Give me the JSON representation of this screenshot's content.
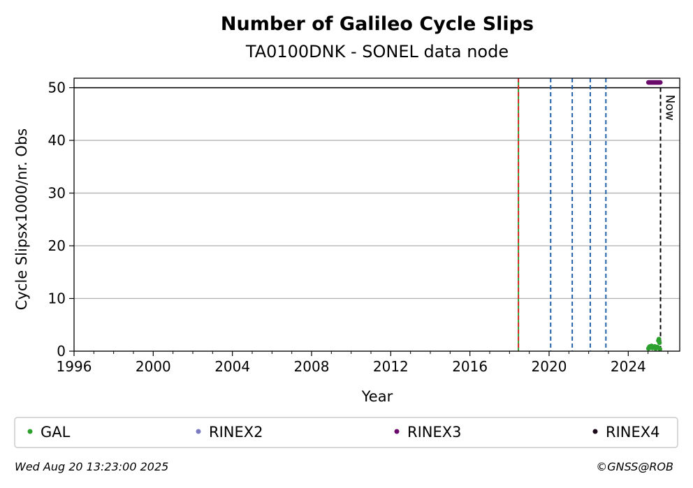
{
  "chart_data": {
    "type": "scatter",
    "title": "Number of Galileo Cycle Slips",
    "subtitle": "TA0100DNK - SONEL data node",
    "xlabel": "Year",
    "ylabel": "Cycle Slipsx1000/nr. Obs",
    "xlim": [
      1996,
      2026.6
    ],
    "ylim": [
      0,
      51.8
    ],
    "xticks": [
      "1996",
      "2000",
      "2004",
      "2008",
      "2012",
      "2016",
      "2020",
      "2024"
    ],
    "xtick_values": [
      1996,
      2000,
      2004,
      2008,
      2012,
      2016,
      2020,
      2024
    ],
    "yticks": [
      "0",
      "10",
      "20",
      "30",
      "40",
      "50"
    ],
    "ytick_values": [
      0,
      10,
      20,
      30,
      40,
      50
    ],
    "grid": "horizontal",
    "reference_line_y": 50,
    "event_lines": [
      {
        "x": 2018.45,
        "color": "#d62728",
        "style": "dashed",
        "overlay_color": "#2ca02c"
      },
      {
        "x": 2020.08,
        "color": "#1f5fa8",
        "style": "dashed"
      },
      {
        "x": 2021.17,
        "color": "#1f5fa8",
        "style": "dashed"
      },
      {
        "x": 2022.08,
        "color": "#1f5fa8",
        "style": "dashed"
      },
      {
        "x": 2022.87,
        "color": "#1f5fa8",
        "style": "dashed"
      }
    ],
    "now": {
      "x": 2025.63,
      "label": "Now"
    },
    "series": [
      {
        "name": "GAL",
        "color": "#2ca02c",
        "x": [
          2025.02,
          2025.06,
          2025.1,
          2025.14,
          2025.18,
          2025.22,
          2025.26,
          2025.3,
          2025.34,
          2025.38,
          2025.42,
          2025.46,
          2025.5,
          2025.52,
          2025.55,
          2025.58,
          2025.6
        ],
        "y": [
          0.5,
          0.8,
          0.9,
          0.7,
          1.0,
          0.6,
          0.8,
          0.7,
          0.9,
          0.5,
          0.6,
          0.8,
          0.7,
          2.0,
          2.3,
          1.6,
          0.4
        ]
      },
      {
        "name": "RINEX2",
        "color": "#7b7bc0",
        "x": [],
        "y": []
      },
      {
        "name": "RINEX3",
        "color": "#6a0a6a",
        "x": [
          2025.02,
          2025.06,
          2025.1,
          2025.14,
          2025.18,
          2025.22,
          2025.26,
          2025.3,
          2025.34,
          2025.38,
          2025.42,
          2025.46,
          2025.5,
          2025.54,
          2025.58,
          2025.62
        ],
        "y": [
          51,
          51,
          51,
          51,
          51,
          51,
          51,
          51,
          51,
          51,
          51,
          51,
          51,
          51,
          51,
          51
        ]
      },
      {
        "name": "RINEX4",
        "color": "#1a0a1a",
        "x": [],
        "y": []
      }
    ],
    "legend_position": "bottom"
  },
  "footer": {
    "timestamp": "Wed Aug 20 13:23:00 2025",
    "credit": "©GNSS@ROB"
  }
}
